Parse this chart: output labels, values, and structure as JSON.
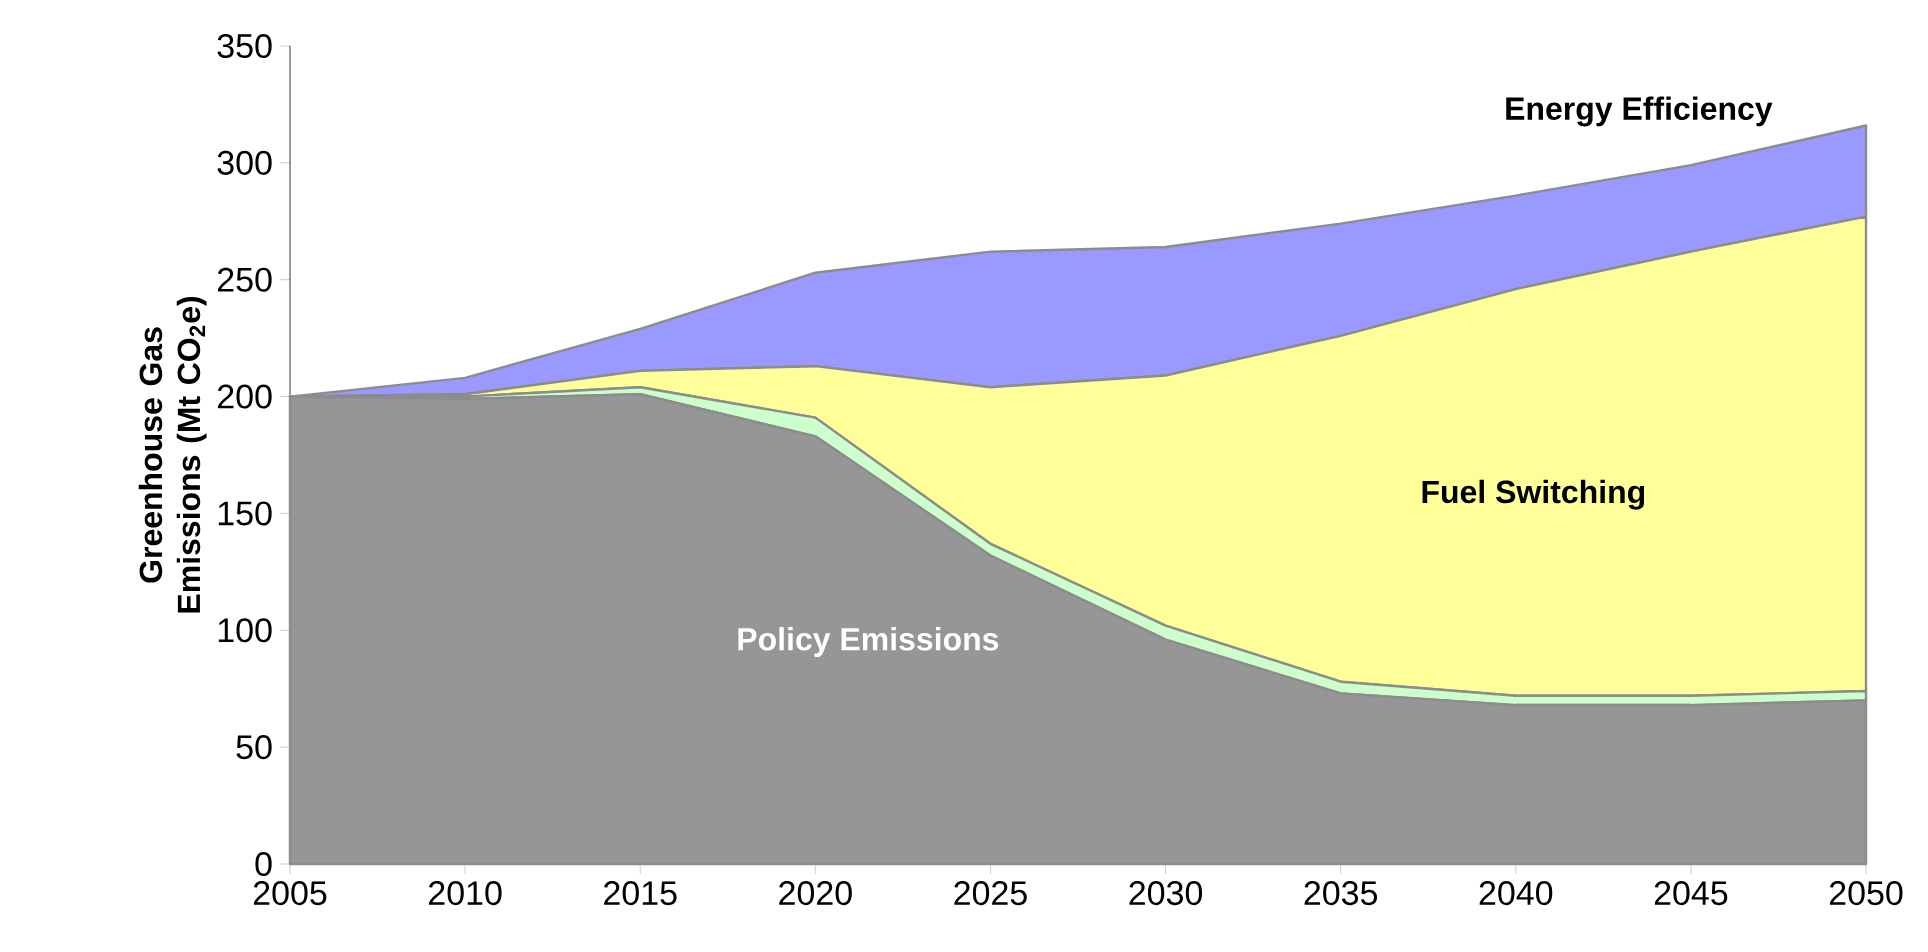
{
  "chart_data": {
    "type": "area",
    "stacked": true,
    "ylabel": "Greenhouse Gas Emissions (Mt CO$_{2}$e)",
    "x": [
      2005,
      2010,
      2015,
      2020,
      2025,
      2030,
      2035,
      2040,
      2045,
      2050
    ],
    "xlim": [
      2005,
      2050
    ],
    "xticks": [
      2005,
      2010,
      2015,
      2020,
      2025,
      2030,
      2035,
      2040,
      2045,
      2050
    ],
    "ylim": [
      0,
      350
    ],
    "yticks": [
      0,
      50,
      100,
      150,
      200,
      250,
      300,
      350
    ],
    "series": [
      {
        "name": "Policy Emissions",
        "color": "#969696",
        "values": [
          200,
          199,
          201,
          183,
          132,
          96,
          73,
          68,
          68,
          70
        ]
      },
      {
        "color": "#ccffcc",
        "values": [
          0,
          1,
          3,
          8,
          5,
          6,
          5,
          4,
          4,
          4
        ]
      },
      {
        "name": "Fuel Switching",
        "color": "#ffff99",
        "values": [
          0,
          1,
          7,
          22,
          67,
          107,
          148,
          174,
          190,
          203
        ]
      },
      {
        "name": "Energy Efficiency",
        "color": "#9999ff",
        "values": [
          0,
          7,
          18,
          40,
          58,
          55,
          48,
          40,
          37,
          39
        ]
      }
    ]
  }
}
